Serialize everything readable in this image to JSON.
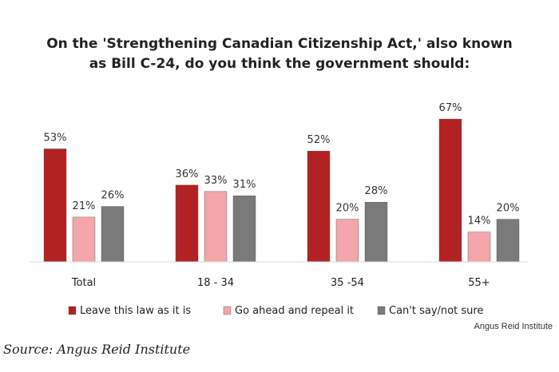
{
  "chart_data": {
    "type": "bar",
    "title_lines": [
      "On the 'Strengthening Canadian Citizenship Act,' also known",
      "as Bill C-24, do you think the government should:"
    ],
    "categories": [
      "Total",
      "18 - 34",
      "35 -54",
      "55+"
    ],
    "series": [
      {
        "name": "Leave this law as it is",
        "values": [
          53,
          36,
          52,
          67
        ],
        "color": "#b22222"
      },
      {
        "name": "Go ahead and repeal it",
        "values": [
          21,
          33,
          20,
          14
        ],
        "color": "#f4a6aa"
      },
      {
        "name": "Can't say/not sure",
        "values": [
          26,
          31,
          28,
          20
        ],
        "color": "#7a7a7a"
      }
    ],
    "value_suffix": "%",
    "ylim": [
      0,
      70
    ],
    "grid": false,
    "legend_position": "bottom"
  },
  "credit": "Angus Reid Institute",
  "source": "Source: Angus Reid Institute"
}
